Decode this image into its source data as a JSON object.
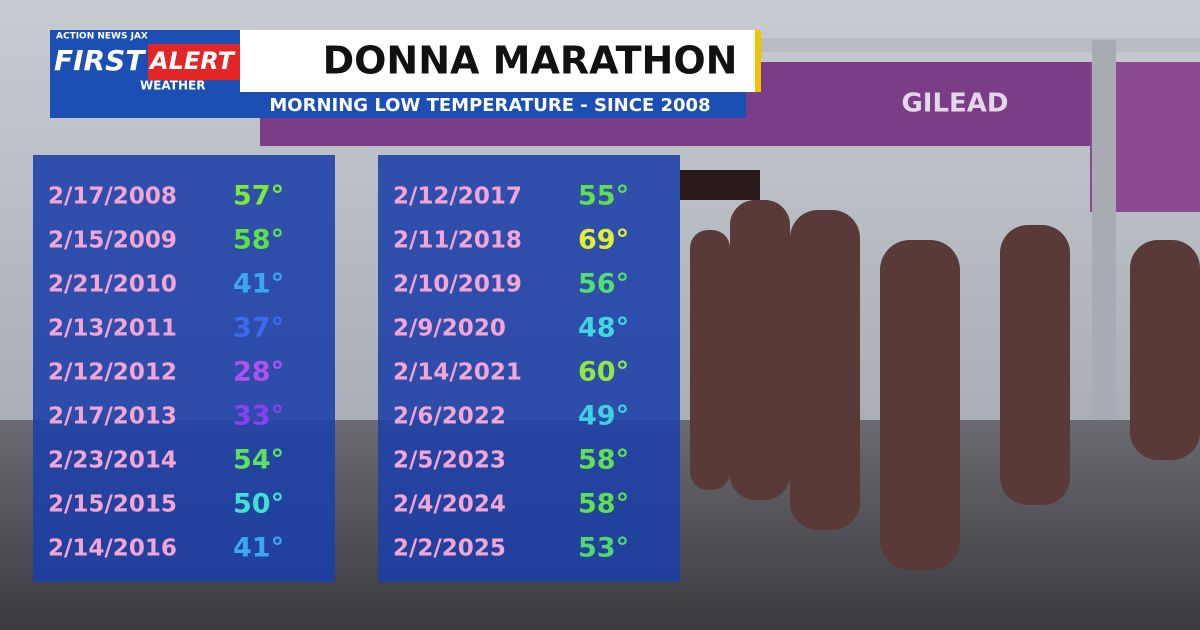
{
  "logo": {
    "network": "ACTION NEWS JAX",
    "first": "FIRST",
    "alert": "ALERT",
    "weather": "WEATHER"
  },
  "header": {
    "title": "DONNA MARATHON",
    "subtitle": "MORNING LOW TEMPERATURE - SINCE 2008"
  },
  "background": {
    "banner": "GILEAD"
  },
  "table": {
    "columns": [
      {
        "rows": [
          {
            "date": "2/17/2008",
            "temp": "57°",
            "color": "#7de83a"
          },
          {
            "date": "2/15/2009",
            "temp": "58°",
            "color": "#5ee04a"
          },
          {
            "date": "2/21/2010",
            "temp": "41°",
            "color": "#3aa8f0"
          },
          {
            "date": "2/13/2011",
            "temp": "37°",
            "color": "#3a6af0"
          },
          {
            "date": "2/12/2012",
            "temp": "28°",
            "color": "#b050f0"
          },
          {
            "date": "2/17/2013",
            "temp": "33°",
            "color": "#8a40f0"
          },
          {
            "date": "2/23/2014",
            "temp": "54°",
            "color": "#5ee060"
          },
          {
            "date": "2/15/2015",
            "temp": "50°",
            "color": "#40e0d0"
          },
          {
            "date": "2/14/2016",
            "temp": "41°",
            "color": "#3aa8f0"
          }
        ]
      },
      {
        "rows": [
          {
            "date": "2/12/2017",
            "temp": "55°",
            "color": "#60e050"
          },
          {
            "date": "2/11/2018",
            "temp": "69°",
            "color": "#e0f030"
          },
          {
            "date": "2/10/2019",
            "temp": "56°",
            "color": "#50e070"
          },
          {
            "date": "2/9/2020",
            "temp": "48°",
            "color": "#40d8e0"
          },
          {
            "date": "2/14/2021",
            "temp": "60°",
            "color": "#90e840"
          },
          {
            "date": "2/6/2022",
            "temp": "49°",
            "color": "#40d0e0"
          },
          {
            "date": "2/5/2023",
            "temp": "58°",
            "color": "#60e050"
          },
          {
            "date": "2/4/2024",
            "temp": "58°",
            "color": "#60e050"
          },
          {
            "date": "2/2/2025",
            "temp": "53°",
            "color": "#50d870"
          }
        ]
      }
    ]
  }
}
